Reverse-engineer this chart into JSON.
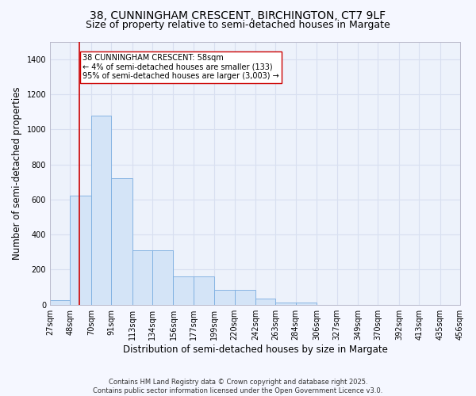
{
  "title_line1": "38, CUNNINGHAM CRESCENT, BIRCHINGTON, CT7 9LF",
  "title_line2": "Size of property relative to semi-detached houses in Margate",
  "xlabel": "Distribution of semi-detached houses by size in Margate",
  "ylabel": "Number of semi-detached properties",
  "footnote": "Contains HM Land Registry data © Crown copyright and database right 2025.\nContains public sector information licensed under the Open Government Licence v3.0.",
  "bar_left_edges": [
    27,
    48,
    70,
    91,
    113,
    134,
    156,
    177,
    199,
    220,
    242,
    263,
    284,
    306,
    327,
    349,
    370,
    392,
    413,
    435
  ],
  "bar_widths": [
    21,
    22,
    21,
    22,
    21,
    22,
    21,
    22,
    21,
    22,
    21,
    21,
    22,
    21,
    22,
    21,
    22,
    21,
    22,
    21
  ],
  "bar_heights": [
    25,
    620,
    1080,
    720,
    310,
    310,
    160,
    160,
    85,
    85,
    35,
    10,
    10,
    0,
    0,
    0,
    0,
    0,
    0,
    0
  ],
  "bar_color": "#d4e4f7",
  "bar_edge_color": "#7aade0",
  "property_x": 58,
  "vline_color": "#cc0000",
  "annotation_text": "38 CUNNINGHAM CRESCENT: 58sqm\n← 4% of semi-detached houses are smaller (133)\n95% of semi-detached houses are larger (3,003) →",
  "annotation_box_color": "#ffffff",
  "annotation_box_edge": "#cc0000",
  "ylim": [
    0,
    1500
  ],
  "xlim": [
    27,
    456
  ],
  "yticks": [
    0,
    200,
    400,
    600,
    800,
    1000,
    1200,
    1400
  ],
  "xtick_labels": [
    "27sqm",
    "48sqm",
    "70sqm",
    "91sqm",
    "113sqm",
    "134sqm",
    "156sqm",
    "177sqm",
    "199sqm",
    "220sqm",
    "242sqm",
    "263sqm",
    "284sqm",
    "306sqm",
    "327sqm",
    "349sqm",
    "370sqm",
    "392sqm",
    "413sqm",
    "435sqm",
    "456sqm"
  ],
  "xtick_positions": [
    27,
    48,
    70,
    91,
    113,
    134,
    156,
    177,
    199,
    220,
    242,
    263,
    284,
    306,
    327,
    349,
    370,
    392,
    413,
    435,
    456
  ],
  "bg_color": "#edf2fb",
  "grid_color": "#d8dff0",
  "fig_bg_color": "#f5f7ff",
  "title_fontsize": 10,
  "subtitle_fontsize": 9,
  "axis_label_fontsize": 8.5,
  "tick_fontsize": 7,
  "annotation_fontsize": 7,
  "footnote_fontsize": 6
}
